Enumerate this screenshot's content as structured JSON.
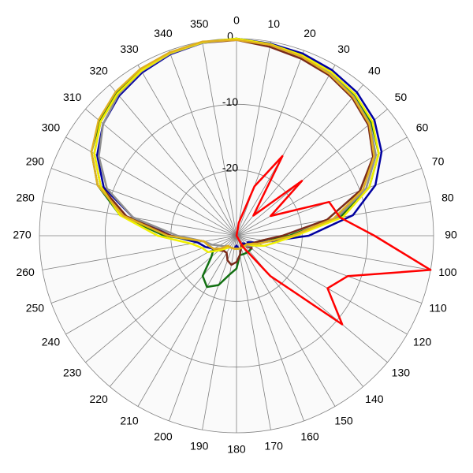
{
  "chart_data": {
    "type": "polar",
    "x": [
      0,
      10,
      20,
      30,
      40,
      50,
      60,
      70,
      80,
      90,
      100,
      110,
      120,
      130,
      140,
      150,
      160,
      170,
      180,
      190,
      200,
      210,
      220,
      230,
      240,
      250,
      260,
      270,
      280,
      290,
      300,
      310,
      320,
      330,
      340,
      350
    ],
    "rlim": [
      -30,
      0
    ],
    "rticks": [
      -20,
      -10,
      0
    ],
    "grid": true,
    "series": [
      {
        "color": "#0000a0",
        "values": [
          0,
          -0.3,
          -0.5,
          -0.9,
          -1.5,
          -2.6,
          -4.5,
          -7.5,
          -12,
          -19,
          -25,
          -27,
          -28,
          -28,
          -28.5,
          -28,
          -28,
          -28,
          -28.5,
          -28,
          -28,
          -28,
          -28,
          -27,
          -26,
          -25,
          -24,
          -20,
          -14,
          -8.5,
          -5.5,
          -3.5,
          -2.2,
          -1.3,
          -0.6,
          -0.2
        ]
      },
      {
        "color": "#127012",
        "values": [
          0,
          -0.4,
          -0.8,
          -1.3,
          -2,
          -3.2,
          -5,
          -8.5,
          -14,
          -22,
          -26,
          -27,
          -27.5,
          -27,
          -27,
          -27,
          -27,
          -27,
          -25,
          -24,
          -22,
          -21,
          -22,
          -25,
          -26,
          -25.5,
          -25,
          -19,
          -12,
          -7.5,
          -4.5,
          -2.8,
          -1.6,
          -0.9,
          -0.4,
          -0.1
        ]
      },
      {
        "color": "#7a2a1a",
        "values": [
          -0.2,
          -0.8,
          -1.3,
          -1.8,
          -2.6,
          -3.8,
          -6,
          -10,
          -16,
          -23,
          -26,
          -27,
          -27.5,
          -27,
          -28,
          -28.5,
          -28,
          -27,
          -26,
          -25.5,
          -26,
          -27,
          -27,
          -26.5,
          -26,
          -25.5,
          -25,
          -20,
          -13,
          -8,
          -5,
          -3,
          -1.8,
          -1,
          -0.5,
          -0.2
        ]
      },
      {
        "color": "#909090",
        "values": [
          -0.1,
          -0.5,
          -1,
          -1.5,
          -2.3,
          -3.5,
          -5.5,
          -9,
          -14.5,
          -21,
          -25,
          -26.5,
          -27,
          -27.5,
          -28,
          -28,
          -28,
          -28,
          -28,
          -28,
          -28,
          -28,
          -28,
          -27.5,
          -27,
          -26,
          -25,
          -21,
          -14,
          -9,
          -5.8,
          -3.5,
          -2,
          -1.1,
          -0.5,
          -0.2
        ]
      },
      {
        "color": "#f0f000",
        "values": [
          0,
          -0.4,
          -0.8,
          -1.2,
          -1.9,
          -3,
          -5,
          -8.5,
          -13.5,
          -21,
          -24,
          -25.5,
          -27,
          -28,
          -28,
          -28,
          -28,
          -28,
          -28,
          -28,
          -28,
          -28,
          -27.5,
          -26.5,
          -25,
          -24.5,
          -23,
          -18,
          -12,
          -8,
          -5,
          -3,
          -1.8,
          -1,
          -0.4,
          -0.1
        ]
      },
      {
        "color": "#e0b020",
        "values": [
          -0.2,
          -0.5,
          -1,
          -1.6,
          -2.4,
          -3.6,
          -5.8,
          -9.5,
          -15,
          -21.5,
          -25,
          -26.5,
          -27.5,
          -28,
          -28,
          -28,
          -28,
          -28,
          -28,
          -28,
          -28,
          -28,
          -28,
          -27,
          -26,
          -25.5,
          -25,
          -19.5,
          -12.5,
          -7.5,
          -4.5,
          -2.6,
          -1.4,
          -0.7,
          -0.3,
          0
        ]
      },
      {
        "color": "#ff0000",
        "values": [
          -30,
          -28,
          -22,
          -16,
          -26,
          -17,
          -24,
          -15,
          -14,
          -9,
          0,
          -12,
          -14,
          -9,
          -22,
          -28,
          -30,
          -30,
          -30,
          -30,
          -30,
          -30,
          -30,
          -30,
          -30,
          -30,
          -30,
          -30,
          -30,
          -30,
          -30,
          -30,
          -30,
          -30,
          -30,
          -30
        ]
      }
    ]
  }
}
